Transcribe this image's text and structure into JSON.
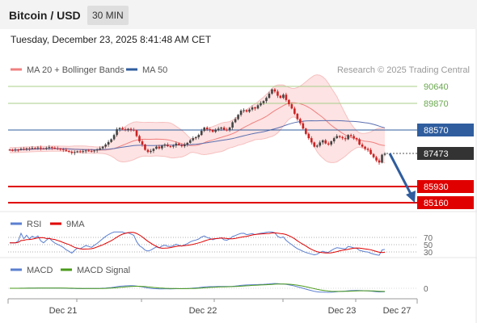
{
  "header": {
    "title": "Bitcoin / USD",
    "timeframe": "30 MIN"
  },
  "timestamp": "Tuesday, December 23, 2025 8:41:48 AM CET",
  "legend": {
    "bollinger": "MA 20 + Bollinger Bands",
    "ma50": "MA 50",
    "credit": "Research © 2025 Trading Central"
  },
  "colors": {
    "bollinger": "#f08080",
    "ma50": "#2f5d9e",
    "bull": "#444444",
    "bear": "#cc2222",
    "resistance": "#a8cf88",
    "support": "#e00000",
    "pivot": "#2f5d9e",
    "arrow": "#2f5d9e",
    "rsi": "#5b7fd0",
    "rsi_ma": "#e00000",
    "macd": "#5b7fd0",
    "macd_signal": "#4a9a1a"
  },
  "levels": {
    "resistance": [
      "90640",
      "89870"
    ],
    "pivot": "88570",
    "current": "87473",
    "support": [
      "85930",
      "85160"
    ]
  },
  "rsi_panel": {
    "label_rsi": "RSI",
    "label_ma": "9MA",
    "levels": [
      "70",
      "50",
      "30"
    ]
  },
  "macd_panel": {
    "label_macd": "MACD",
    "label_signal": "MACD Signal",
    "zero": "0"
  },
  "x_axis": {
    "ticks": [
      "Dec 21",
      "Dec 22",
      "Dec 23",
      "Dec 27"
    ]
  },
  "chart_data": {
    "type": "candlestick",
    "symbol": "Bitcoin / USD",
    "interval": "30 MIN",
    "price_range": [
      84900,
      91300
    ],
    "closes": [
      87640,
      87630,
      87660,
      87650,
      87700,
      87680,
      87720,
      87700,
      87740,
      87730,
      87760,
      87720,
      87700,
      87740,
      87780,
      87750,
      87720,
      87700,
      87680,
      87650,
      87600,
      87560,
      87500,
      87540,
      87580,
      87560,
      87590,
      87620,
      87600,
      87580,
      87620,
      87660,
      87720,
      87800,
      87900,
      88020,
      88150,
      88350,
      88620,
      88680,
      88620,
      88580,
      88640,
      88600,
      88560,
      88300,
      88050,
      87900,
      87650,
      87550,
      87600,
      87700,
      87800,
      87720,
      87850,
      87900,
      87820,
      87800,
      87850,
      87950,
      87880,
      87820,
      87900,
      87980,
      88100,
      88200,
      88250,
      88350,
      88550,
      88700,
      88620,
      88580,
      88500,
      88600,
      88650,
      88700,
      88600,
      88580,
      88700,
      88950,
      89100,
      89300,
      89500,
      89520,
      89450,
      89550,
      89650,
      89600,
      89750,
      89850,
      89950,
      90100,
      90300,
      90500,
      90400,
      90200,
      90100,
      90250,
      90000,
      89800,
      89600,
      89350,
      89100,
      88900,
      88650,
      88400,
      88200,
      88000,
      87800,
      87850,
      88000,
      88100,
      87950,
      87900,
      88050,
      88200,
      88300,
      88250,
      88200,
      88150,
      88350,
      88300,
      88200,
      88150,
      87900,
      87800,
      87700,
      87650,
      87450,
      87300,
      87150,
      87050,
      87420,
      87473
    ],
    "supports": [
      85930,
      85160
    ],
    "resistances": [
      90640,
      89870
    ],
    "pivot": 88570,
    "last": 87473
  }
}
